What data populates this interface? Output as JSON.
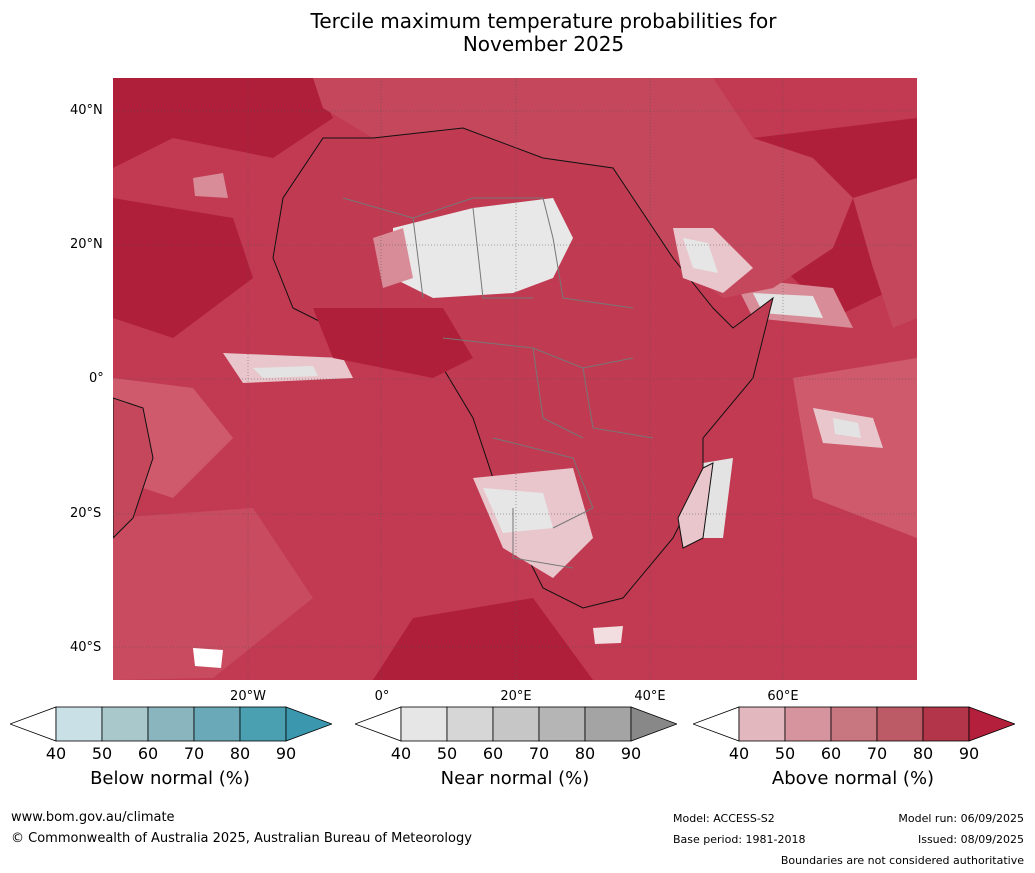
{
  "title_line1": "Tercile maximum temperature probabilities for",
  "title_line2": "November 2025",
  "latitude_labels": [
    "40°N",
    "20°N",
    "0°",
    "20°S",
    "40°S"
  ],
  "longitude_labels": [
    "20°W",
    "0°",
    "20°E",
    "40°E",
    "60°E"
  ],
  "colorbars": [
    {
      "label": "Below normal (%)",
      "ticks": [
        "40",
        "50",
        "60",
        "70",
        "80",
        "90"
      ],
      "colors": [
        "#ffffff",
        "#c8e0e6",
        "#a8c8cc",
        "#8ab5bf",
        "#6aaab8",
        "#4a9fb0",
        "#3a97ad"
      ]
    },
    {
      "label": "Near normal (%)",
      "ticks": [
        "40",
        "50",
        "60",
        "70",
        "80",
        "90"
      ],
      "colors": [
        "#ffffff",
        "#e6e6e6",
        "#d6d6d6",
        "#c6c6c6",
        "#b5b5b5",
        "#a4a4a4",
        "#888888"
      ]
    },
    {
      "label": "Above normal (%)",
      "ticks": [
        "40",
        "50",
        "60",
        "70",
        "80",
        "90"
      ],
      "colors": [
        "#ffffff",
        "#e2b8be",
        "#d5949e",
        "#c8767f",
        "#bc5a66",
        "#b3354a",
        "#b41f3c"
      ]
    }
  ],
  "footer": {
    "website": "www.bom.gov.au/climate",
    "copyright": "© Commonwealth of Australia 2025, Australian Bureau of Meteorology",
    "model": "Model: ACCESS-S2",
    "base_period": "Base period: 1981-2018",
    "model_run": "Model run: 06/09/2025",
    "issued": "Issued: 08/09/2025",
    "disclaimer": "Boundaries are not considered authoritative"
  }
}
